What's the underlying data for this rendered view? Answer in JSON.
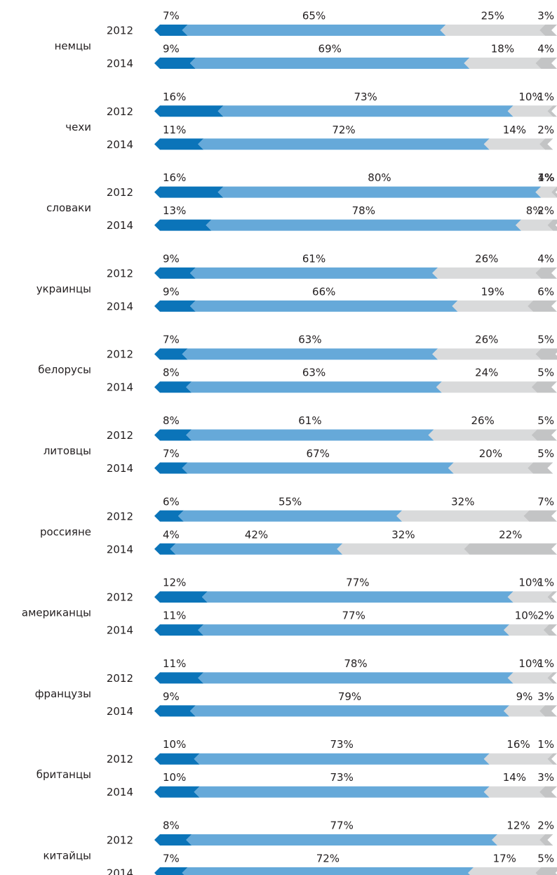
{
  "chart_data": {
    "type": "stacked-arrow-bar",
    "colors": [
      "#0b74b9",
      "#66a9d9",
      "#d9dadb",
      "#c3c4c5"
    ],
    "xlim": [
      0,
      100
    ],
    "groups": [
      {
        "name": "немцы",
        "bars": [
          {
            "year": "2012",
            "values": [
              7,
              65,
              25,
              3
            ],
            "value_labels": [
              "7%",
              "65%",
              "25%",
              "3%"
            ]
          },
          {
            "year": "2014",
            "values": [
              9,
              69,
              18,
              4
            ],
            "value_labels": [
              "9%",
              "69%",
              "18%",
              "4%"
            ]
          }
        ]
      },
      {
        "name": "чехи",
        "bars": [
          {
            "year": "2012",
            "values": [
              16,
              73,
              10,
              1
            ],
            "value_labels": [
              "16%",
              "73%",
              "10%",
              "1%"
            ]
          },
          {
            "year": "2014",
            "values": [
              11,
              72,
              14,
              2
            ],
            "value_labels": [
              "11%",
              "72%",
              "14%",
              "2%"
            ]
          }
        ]
      },
      {
        "name": "словаки",
        "bars": [
          {
            "year": "2012",
            "values": [
              16,
              80,
              4,
              1
            ],
            "value_labels": [
              "16%",
              "80%",
              "4%",
              "1%"
            ]
          },
          {
            "year": "2014",
            "values": [
              13,
              78,
              8,
              2
            ],
            "value_labels": [
              "13%",
              "78%",
              "8%",
              "2%"
            ]
          }
        ]
      },
      {
        "name": "украинцы",
        "bars": [
          {
            "year": "2012",
            "values": [
              9,
              61,
              26,
              4
            ],
            "value_labels": [
              "9%",
              "61%",
              "26%",
              "4%"
            ]
          },
          {
            "year": "2014",
            "values": [
              9,
              66,
              19,
              6
            ],
            "value_labels": [
              "9%",
              "66%",
              "19%",
              "6%"
            ]
          }
        ]
      },
      {
        "name": "белорусы",
        "bars": [
          {
            "year": "2012",
            "values": [
              7,
              63,
              26,
              5
            ],
            "value_labels": [
              "7%",
              "63%",
              "26%",
              "5%"
            ]
          },
          {
            "year": "2014",
            "values": [
              8,
              63,
              24,
              5
            ],
            "value_labels": [
              "8%",
              "63%",
              "24%",
              "5%"
            ]
          }
        ]
      },
      {
        "name": "литовцы",
        "bars": [
          {
            "year": "2012",
            "values": [
              8,
              61,
              26,
              5
            ],
            "value_labels": [
              "8%",
              "61%",
              "26%",
              "5%"
            ]
          },
          {
            "year": "2014",
            "values": [
              7,
              67,
              20,
              5
            ],
            "value_labels": [
              "7%",
              "67%",
              "20%",
              "5%"
            ]
          }
        ]
      },
      {
        "name": "россияне",
        "bars": [
          {
            "year": "2012",
            "values": [
              6,
              55,
              32,
              7
            ],
            "value_labels": [
              "6%",
              "55%",
              "32%",
              "7%"
            ]
          },
          {
            "year": "2014",
            "values": [
              4,
              42,
              32,
              22
            ],
            "value_labels": [
              "4%",
              "42%",
              "32%",
              "22%"
            ]
          }
        ]
      },
      {
        "name": "американцы",
        "bars": [
          {
            "year": "2012",
            "values": [
              12,
              77,
              10,
              1
            ],
            "value_labels": [
              "12%",
              "77%",
              "10%",
              "1%"
            ]
          },
          {
            "year": "2014",
            "values": [
              11,
              77,
              10,
              2
            ],
            "value_labels": [
              "11%",
              "77%",
              "10%",
              "2%"
            ]
          }
        ]
      },
      {
        "name": "французы",
        "bars": [
          {
            "year": "2012",
            "values": [
              11,
              78,
              10,
              1
            ],
            "value_labels": [
              "11%",
              "78%",
              "10%",
              "1%"
            ]
          },
          {
            "year": "2014",
            "values": [
              9,
              79,
              9,
              3
            ],
            "value_labels": [
              "9%",
              "79%",
              "9%",
              "3%"
            ]
          }
        ]
      },
      {
        "name": "британцы",
        "bars": [
          {
            "year": "2012",
            "values": [
              10,
              73,
              16,
              1
            ],
            "value_labels": [
              "10%",
              "73%",
              "16%",
              "1%"
            ]
          },
          {
            "year": "2014",
            "values": [
              10,
              73,
              14,
              3
            ],
            "value_labels": [
              "10%",
              "73%",
              "14%",
              "3%"
            ]
          }
        ]
      },
      {
        "name": "китайцы",
        "bars": [
          {
            "year": "2012",
            "values": [
              8,
              77,
              12,
              2
            ],
            "value_labels": [
              "8%",
              "77%",
              "12%",
              "2%"
            ]
          },
          {
            "year": "2014",
            "values": [
              7,
              72,
              17,
              5
            ],
            "value_labels": [
              "7%",
              "72%",
              "17%",
              "5%"
            ]
          }
        ]
      }
    ]
  }
}
